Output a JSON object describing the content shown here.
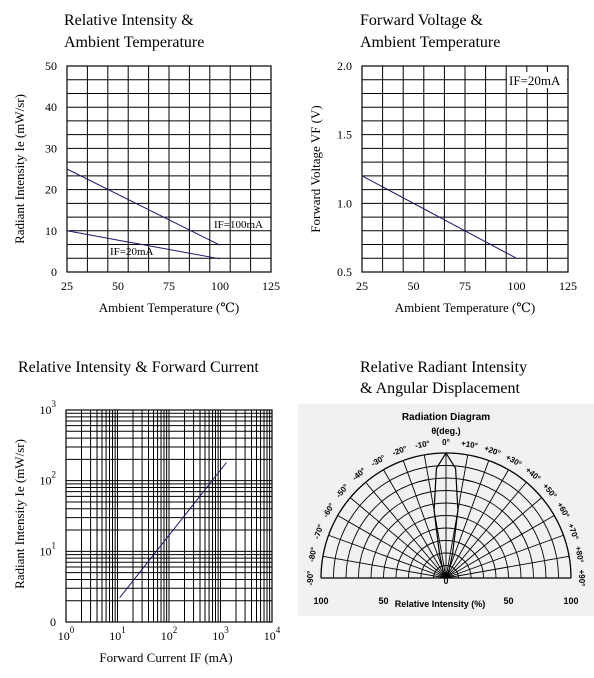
{
  "chart_data": [
    {
      "type": "line",
      "title": [
        "Relative Intensity &",
        "Ambient Temperature"
      ],
      "xlabel": "Ambient Temperature (℃)",
      "ylabel": "Radiant Intensity Ie (mW/sr)",
      "xlim": [
        25,
        125
      ],
      "ylim": [
        0,
        50
      ],
      "xticks": [
        "25",
        "50",
        "75",
        "100",
        "125"
      ],
      "yticks": [
        "0",
        "10",
        "20",
        "30",
        "40",
        "50"
      ],
      "grid": true,
      "series": [
        {
          "name": "IF=100mA",
          "x": [
            25,
            100
          ],
          "y": [
            25,
            6.5
          ]
        },
        {
          "name": "IF=20mA",
          "x": [
            25,
            100
          ],
          "y": [
            10,
            3.2
          ]
        }
      ]
    },
    {
      "type": "line",
      "title": [
        "Forward Voltage &",
        "Ambient Temperature"
      ],
      "xlabel": "Ambient Temperature (℃)",
      "ylabel": "Forward Voltage VF (V)",
      "xlim": [
        25,
        125
      ],
      "ylim": [
        0.5,
        2.0
      ],
      "xticks": [
        "25",
        "50",
        "75",
        "100",
        "125"
      ],
      "yticks": [
        "0.5",
        "1.0",
        "1.5",
        "2.0"
      ],
      "grid": true,
      "legend": "IF=20mA",
      "series": [
        {
          "x": [
            25,
            100
          ],
          "y": [
            1.2,
            0.6
          ]
        }
      ]
    },
    {
      "type": "line",
      "title": [
        "Relative Intensity & Forward Current"
      ],
      "xlabel": "Forward Current IF (mA)",
      "ylabel": "Radiant Intensity Ie (mW/sr)",
      "xscale": "log",
      "yscale": "log",
      "xlim": [
        1,
        10000
      ],
      "ylim": [
        1,
        1000
      ],
      "xticks": [
        {
          "base": "10",
          "exp": "0"
        },
        {
          "base": "10",
          "exp": "1"
        },
        {
          "base": "10",
          "exp": "2"
        },
        {
          "base": "10",
          "exp": "3"
        },
        {
          "base": "10",
          "exp": "4"
        }
      ],
      "yticks": [
        {
          "base": "0",
          "exp": ""
        },
        {
          "base": "10",
          "exp": "1"
        },
        {
          "base": "10",
          "exp": "2"
        },
        {
          "base": "10",
          "exp": "3"
        }
      ],
      "grid": true,
      "series": [
        {
          "x": [
            11,
            1300
          ],
          "y": [
            2.2,
            180
          ]
        }
      ]
    },
    {
      "type": "polar",
      "title": [
        "Relative Radiant Intensity",
        "& Angular Displacement"
      ],
      "diagram_title": "Radiation Diagram",
      "theta_label": "θ(deg.)",
      "angle_labels": [
        "-90°",
        "-80°",
        "-70°",
        "-60°",
        "-50°",
        "-40°",
        "-30°",
        "-20°",
        "-10°",
        "0°",
        "+10°",
        "+20°",
        "+30°",
        "+40°",
        "+50°",
        "+60°",
        "+70°",
        "+80°",
        "+90°"
      ],
      "radial_labels": [
        "100",
        "50",
        "0",
        "50",
        "100"
      ],
      "center_label": "0",
      "xlabel": "Relative Intensity (%)",
      "pattern": {
        "angle_deg": [
          -90,
          -60,
          -30,
          -20,
          -15,
          -10,
          -5,
          0,
          5,
          10,
          15,
          20,
          30,
          60,
          90
        ],
        "intensity_pct": [
          0,
          0,
          3,
          8,
          20,
          55,
          88,
          100,
          88,
          55,
          20,
          8,
          3,
          0,
          0
        ]
      }
    }
  ]
}
